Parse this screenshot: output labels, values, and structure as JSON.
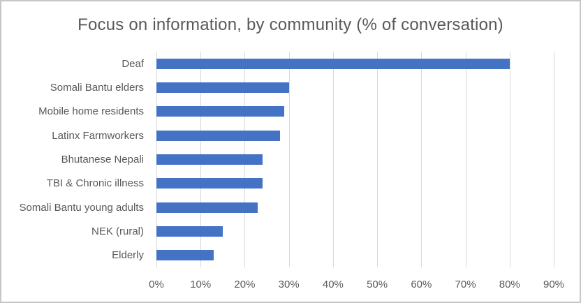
{
  "chart_data": {
    "type": "bar",
    "orientation": "horizontal",
    "title": "Focus on information, by community (% of conversation)",
    "categories": [
      "Deaf",
      "Somali Bantu elders",
      "Mobile home residents",
      "Latinx Farmworkers",
      "Bhutanese Nepali",
      "TBI & Chronic illness",
      "Somali Bantu young adults",
      "NEK (rural)",
      "Elderly"
    ],
    "values": [
      80,
      30,
      29,
      28,
      24,
      24,
      23,
      15,
      13
    ],
    "unit": "%",
    "xlim": [
      0,
      90
    ],
    "xtick_step": 10,
    "xticks": [
      "0%",
      "10%",
      "20%",
      "30%",
      "40%",
      "50%",
      "60%",
      "70%",
      "80%",
      "90%"
    ],
    "grid": "vertical",
    "legend": "none",
    "colors": {
      "bar": "#4472c4",
      "gridline": "#d9d9d9",
      "axis_line": "#d9d9d9",
      "text": "#595959",
      "title": "#595959",
      "frame_border": "#c6c6c6",
      "background": "#ffffff"
    }
  }
}
